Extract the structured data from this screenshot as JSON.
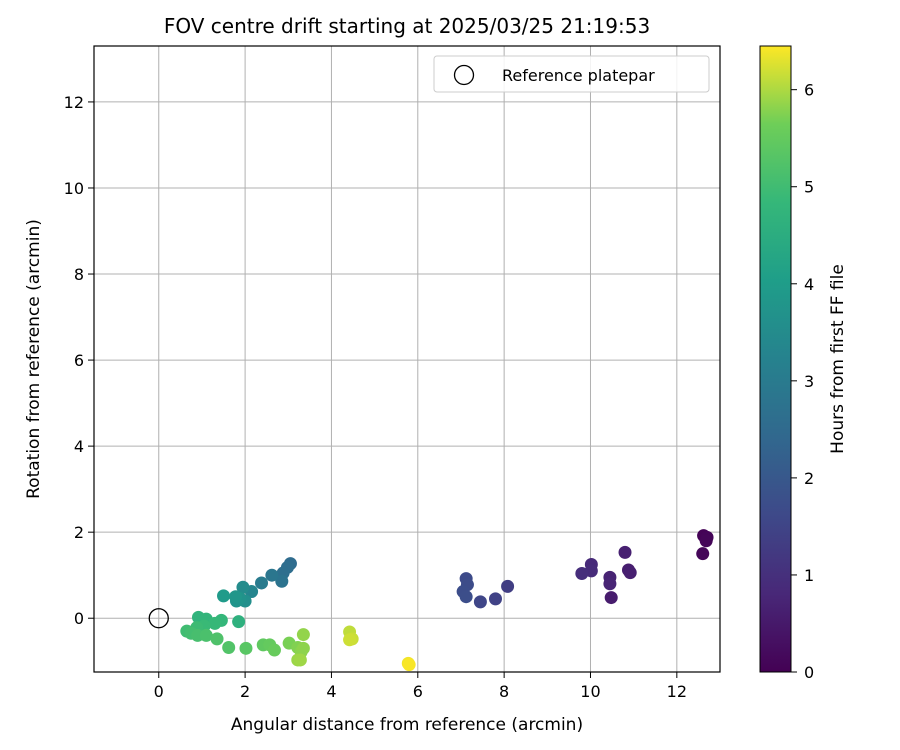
{
  "chart_data": {
    "type": "scatter",
    "title": "FOV centre drift starting at 2025/03/25 21:19:53",
    "xlabel": "Angular distance from reference (arcmin)",
    "ylabel": "Rotation from reference (arcmin)",
    "xlim": [
      -1.5,
      13.0
    ],
    "ylim": [
      -1.25,
      13.3
    ],
    "xticks": [
      0,
      2,
      4,
      6,
      8,
      10,
      12
    ],
    "yticks": [
      0,
      2,
      4,
      6,
      8,
      10,
      12
    ],
    "grid": true,
    "legend": {
      "placement": "top-right",
      "entries": [
        "Reference platepar"
      ]
    },
    "reference": {
      "name": "Reference platepar",
      "x": 0,
      "y": 0
    },
    "colorbar": {
      "label": "Hours from first FF file",
      "range": [
        0,
        6.45
      ],
      "ticks": [
        0,
        1,
        2,
        3,
        4,
        5,
        6
      ],
      "colormap": "viridis"
    },
    "points": [
      {
        "x": 12.62,
        "y": 1.92,
        "t": 0.05
      },
      {
        "x": 12.7,
        "y": 1.88,
        "t": 0.08
      },
      {
        "x": 12.68,
        "y": 1.8,
        "t": 0.1
      },
      {
        "x": 12.6,
        "y": 1.5,
        "t": 0.12
      },
      {
        "x": 10.48,
        "y": 0.48,
        "t": 0.55
      },
      {
        "x": 10.88,
        "y": 1.12,
        "t": 0.6
      },
      {
        "x": 10.92,
        "y": 1.06,
        "t": 0.62
      },
      {
        "x": 10.8,
        "y": 1.53,
        "t": 0.65
      },
      {
        "x": 10.45,
        "y": 0.95,
        "t": 0.7
      },
      {
        "x": 10.45,
        "y": 0.8,
        "t": 0.75
      },
      {
        "x": 10.02,
        "y": 1.25,
        "t": 0.85
      },
      {
        "x": 10.02,
        "y": 1.1,
        "t": 0.9
      },
      {
        "x": 9.8,
        "y": 1.04,
        "t": 0.95
      },
      {
        "x": 8.08,
        "y": 0.74,
        "t": 1.35
      },
      {
        "x": 7.8,
        "y": 0.45,
        "t": 1.45
      },
      {
        "x": 7.45,
        "y": 0.38,
        "t": 1.55
      },
      {
        "x": 7.12,
        "y": 0.92,
        "t": 1.65
      },
      {
        "x": 7.15,
        "y": 0.78,
        "t": 1.68
      },
      {
        "x": 7.05,
        "y": 0.62,
        "t": 1.72
      },
      {
        "x": 7.12,
        "y": 0.5,
        "t": 1.75
      },
      {
        "x": 3.05,
        "y": 1.27,
        "t": 2.55
      },
      {
        "x": 2.98,
        "y": 1.18,
        "t": 2.6
      },
      {
        "x": 2.88,
        "y": 1.05,
        "t": 2.65
      },
      {
        "x": 2.85,
        "y": 0.86,
        "t": 2.75
      },
      {
        "x": 2.62,
        "y": 1.0,
        "t": 2.85
      },
      {
        "x": 2.38,
        "y": 0.82,
        "t": 3.0
      },
      {
        "x": 2.15,
        "y": 0.62,
        "t": 3.3
      },
      {
        "x": 1.95,
        "y": 0.72,
        "t": 3.5
      },
      {
        "x": 2.0,
        "y": 0.4,
        "t": 3.6
      },
      {
        "x": 1.88,
        "y": 0.46,
        "t": 3.7
      },
      {
        "x": 1.8,
        "y": 0.4,
        "t": 3.75
      },
      {
        "x": 1.78,
        "y": 0.5,
        "t": 3.8
      },
      {
        "x": 1.5,
        "y": 0.52,
        "t": 3.95
      },
      {
        "x": 1.85,
        "y": -0.08,
        "t": 4.6
      },
      {
        "x": 0.92,
        "y": 0.02,
        "t": 4.7
      },
      {
        "x": 1.1,
        "y": -0.02,
        "t": 4.75
      },
      {
        "x": 1.45,
        "y": -0.05,
        "t": 4.8
      },
      {
        "x": 1.3,
        "y": -0.12,
        "t": 4.85
      },
      {
        "x": 1.05,
        "y": -0.18,
        "t": 4.9
      },
      {
        "x": 0.88,
        "y": -0.22,
        "t": 4.95
      },
      {
        "x": 0.65,
        "y": -0.3,
        "t": 5.0
      },
      {
        "x": 0.75,
        "y": -0.35,
        "t": 5.05
      },
      {
        "x": 0.9,
        "y": -0.4,
        "t": 5.1
      },
      {
        "x": 1.1,
        "y": -0.4,
        "t": 5.15
      },
      {
        "x": 1.35,
        "y": -0.48,
        "t": 5.2
      },
      {
        "x": 1.62,
        "y": -0.68,
        "t": 5.25
      },
      {
        "x": 2.02,
        "y": -0.7,
        "t": 5.35
      },
      {
        "x": 2.42,
        "y": -0.62,
        "t": 5.45
      },
      {
        "x": 2.57,
        "y": -0.62,
        "t": 5.5
      },
      {
        "x": 2.68,
        "y": -0.74,
        "t": 5.55
      },
      {
        "x": 3.02,
        "y": -0.58,
        "t": 5.7
      },
      {
        "x": 3.22,
        "y": -0.68,
        "t": 5.75
      },
      {
        "x": 3.3,
        "y": -0.78,
        "t": 5.8
      },
      {
        "x": 3.35,
        "y": -0.7,
        "t": 5.82
      },
      {
        "x": 3.35,
        "y": -0.38,
        "t": 5.85
      },
      {
        "x": 3.22,
        "y": -0.97,
        "t": 5.9
      },
      {
        "x": 3.28,
        "y": -0.97,
        "t": 5.92
      },
      {
        "x": 4.42,
        "y": -0.32,
        "t": 6.1
      },
      {
        "x": 4.48,
        "y": -0.48,
        "t": 6.15
      },
      {
        "x": 4.42,
        "y": -0.5,
        "t": 6.18
      },
      {
        "x": 5.78,
        "y": -1.05,
        "t": 6.38
      },
      {
        "x": 5.8,
        "y": -1.08,
        "t": 6.42
      }
    ]
  }
}
